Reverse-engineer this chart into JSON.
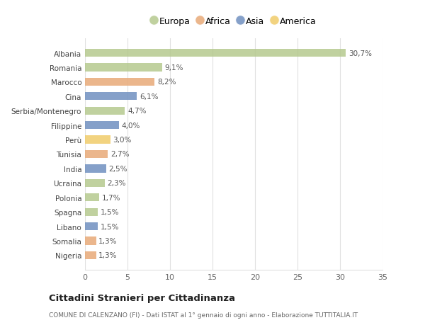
{
  "countries": [
    "Nigeria",
    "Somalia",
    "Libano",
    "Spagna",
    "Polonia",
    "Ucraina",
    "India",
    "Tunisia",
    "Perù",
    "Filippine",
    "Serbia/Montenegro",
    "Cina",
    "Marocco",
    "Romania",
    "Albania"
  ],
  "values": [
    1.3,
    1.3,
    1.5,
    1.5,
    1.7,
    2.3,
    2.5,
    2.7,
    3.0,
    4.0,
    4.7,
    6.1,
    8.2,
    9.1,
    30.7
  ],
  "labels": [
    "1,3%",
    "1,3%",
    "1,5%",
    "1,5%",
    "1,7%",
    "2,3%",
    "2,5%",
    "2,7%",
    "3,0%",
    "4,0%",
    "4,7%",
    "6,1%",
    "8,2%",
    "9,1%",
    "30,7%"
  ],
  "continents": [
    "Africa",
    "Africa",
    "Asia",
    "Europa",
    "Europa",
    "Europa",
    "Asia",
    "Africa",
    "America",
    "Asia",
    "Europa",
    "Asia",
    "Africa",
    "Europa",
    "Europa"
  ],
  "colors": {
    "Europa": "#b5c98e",
    "Africa": "#e8aa78",
    "Asia": "#7090c0",
    "America": "#f0cc6a"
  },
  "xlim": [
    0,
    35
  ],
  "xticks": [
    0,
    5,
    10,
    15,
    20,
    25,
    30,
    35
  ],
  "title": "Cittadini Stranieri per Cittadinanza",
  "subtitle": "COMUNE DI CALENZANO (FI) - Dati ISTAT al 1° gennaio di ogni anno - Elaborazione TUTTITALIA.IT",
  "background_color": "#ffffff",
  "plot_bg_color": "#ffffff",
  "grid_color": "#e0e0e0",
  "bar_height": 0.55,
  "label_fontsize": 7.5,
  "tick_fontsize": 8,
  "ytick_fontsize": 7.5
}
